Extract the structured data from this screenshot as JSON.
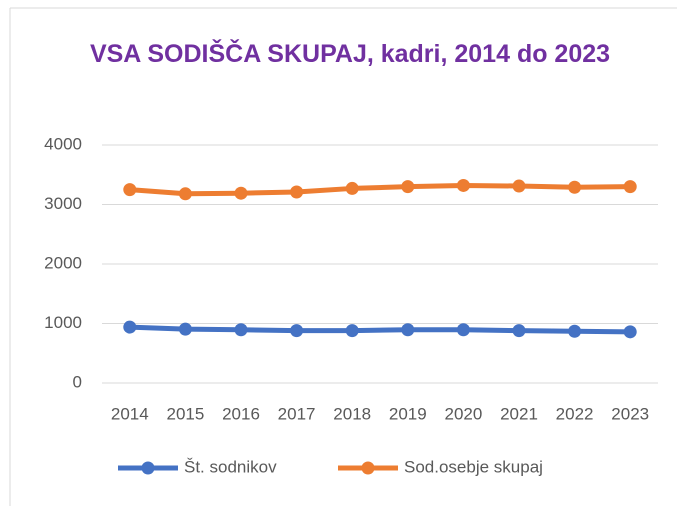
{
  "chart_data": {
    "type": "line",
    "title": "VSA SODIŠČA SKUPAJ, kadri, 2014 do 2023",
    "categories": [
      "2014",
      "2015",
      "2016",
      "2017",
      "2018",
      "2019",
      "2020",
      "2021",
      "2022",
      "2023"
    ],
    "series": [
      {
        "name": "Št. sodnikov",
        "color": "#4472c4",
        "values": [
          940,
          905,
          895,
          880,
          880,
          895,
          895,
          880,
          870,
          860
        ]
      },
      {
        "name": "Sod.osebje skupaj",
        "color": "#ed7d31",
        "values": [
          3250,
          3180,
          3190,
          3210,
          3270,
          3300,
          3320,
          3310,
          3290,
          3300
        ]
      }
    ],
    "ylim": [
      0,
      4000
    ],
    "yticks": [
      0,
      1000,
      2000,
      3000,
      4000
    ],
    "grid": true,
    "legend": "bottom"
  }
}
